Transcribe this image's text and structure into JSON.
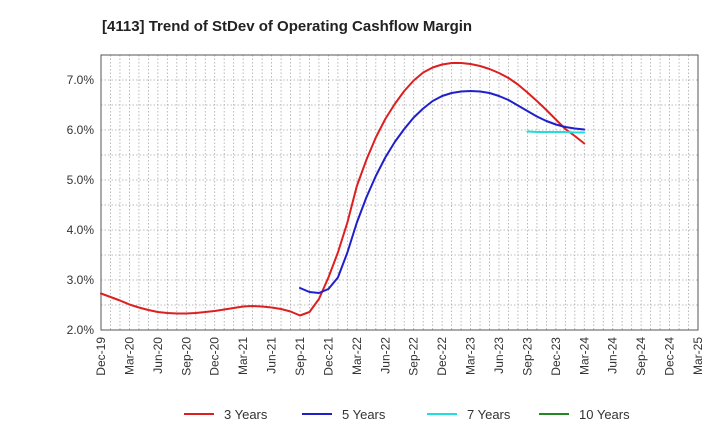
{
  "chart_data": {
    "type": "line",
    "title": "[4113]  Trend of StDev of Operating Cashflow Margin",
    "xlabel": "",
    "ylabel": "",
    "x_ticks": [
      "Dec-19",
      "Mar-20",
      "Jun-20",
      "Sep-20",
      "Dec-20",
      "Mar-21",
      "Jun-21",
      "Sep-21",
      "Dec-21",
      "Mar-22",
      "Jun-22",
      "Sep-22",
      "Dec-22",
      "Mar-23",
      "Jun-23",
      "Sep-23",
      "Dec-23",
      "Mar-24",
      "Jun-24",
      "Sep-24",
      "Dec-24",
      "Mar-25"
    ],
    "y_ticks": [
      "2.0%",
      "3.0%",
      "4.0%",
      "5.0%",
      "6.0%",
      "7.0%"
    ],
    "ylim": [
      2.0,
      7.5
    ],
    "grid": true,
    "legend_position": "bottom",
    "series": [
      {
        "name": "3 Years",
        "color": "#dd1f1f",
        "points": [
          [
            "Dec-19",
            2.73
          ],
          [
            "Jan-20",
            2.66
          ],
          [
            "Feb-20",
            2.59
          ],
          [
            "Mar-20",
            2.51
          ],
          [
            "Apr-20",
            2.45
          ],
          [
            "May-20",
            2.4
          ],
          [
            "Jun-20",
            2.36
          ],
          [
            "Jul-20",
            2.34
          ],
          [
            "Aug-20",
            2.33
          ],
          [
            "Sep-20",
            2.33
          ],
          [
            "Oct-20",
            2.34
          ],
          [
            "Nov-20",
            2.36
          ],
          [
            "Dec-20",
            2.38
          ],
          [
            "Jan-21",
            2.41
          ],
          [
            "Feb-21",
            2.44
          ],
          [
            "Mar-21",
            2.47
          ],
          [
            "Apr-21",
            2.48
          ],
          [
            "May-21",
            2.47
          ],
          [
            "Jun-21",
            2.45
          ],
          [
            "Jul-21",
            2.42
          ],
          [
            "Aug-21",
            2.37
          ],
          [
            "Sep-21",
            2.29
          ],
          [
            "Oct-21",
            2.36
          ],
          [
            "Nov-21",
            2.62
          ],
          [
            "Dec-21",
            3.05
          ],
          [
            "Jan-22",
            3.55
          ],
          [
            "Feb-22",
            4.15
          ],
          [
            "Mar-22",
            4.88
          ],
          [
            "Apr-22",
            5.4
          ],
          [
            "May-22",
            5.85
          ],
          [
            "Jun-22",
            6.22
          ],
          [
            "Jul-22",
            6.52
          ],
          [
            "Aug-22",
            6.78
          ],
          [
            "Sep-22",
            6.99
          ],
          [
            "Oct-22",
            7.15
          ],
          [
            "Nov-22",
            7.25
          ],
          [
            "Dec-22",
            7.31
          ],
          [
            "Jan-23",
            7.34
          ],
          [
            "Feb-23",
            7.34
          ],
          [
            "Mar-23",
            7.32
          ],
          [
            "Apr-23",
            7.28
          ],
          [
            "May-23",
            7.22
          ],
          [
            "Jun-23",
            7.14
          ],
          [
            "Jul-23",
            7.04
          ],
          [
            "Aug-23",
            6.91
          ],
          [
            "Sep-23",
            6.75
          ],
          [
            "Oct-23",
            6.58
          ],
          [
            "Nov-23",
            6.4
          ],
          [
            "Dec-23",
            6.21
          ],
          [
            "Jan-24",
            6.02
          ],
          [
            "Feb-24",
            5.88
          ],
          [
            "Mar-24",
            5.73
          ]
        ]
      },
      {
        "name": "5 Years",
        "color": "#1f1fcc",
        "points": [
          [
            "Sep-21",
            2.84
          ],
          [
            "Oct-21",
            2.76
          ],
          [
            "Nov-21",
            2.74
          ],
          [
            "Dec-21",
            2.82
          ],
          [
            "Jan-22",
            3.05
          ],
          [
            "Feb-22",
            3.55
          ],
          [
            "Mar-22",
            4.15
          ],
          [
            "Apr-22",
            4.65
          ],
          [
            "May-22",
            5.08
          ],
          [
            "Jun-22",
            5.45
          ],
          [
            "Jul-22",
            5.76
          ],
          [
            "Aug-22",
            6.02
          ],
          [
            "Sep-22",
            6.25
          ],
          [
            "Oct-22",
            6.43
          ],
          [
            "Nov-22",
            6.58
          ],
          [
            "Dec-22",
            6.68
          ],
          [
            "Jan-23",
            6.74
          ],
          [
            "Feb-23",
            6.77
          ],
          [
            "Mar-23",
            6.78
          ],
          [
            "Apr-23",
            6.77
          ],
          [
            "May-23",
            6.74
          ],
          [
            "Jun-23",
            6.68
          ],
          [
            "Jul-23",
            6.6
          ],
          [
            "Aug-23",
            6.49
          ],
          [
            "Sep-23",
            6.38
          ],
          [
            "Oct-23",
            6.27
          ],
          [
            "Nov-23",
            6.18
          ],
          [
            "Dec-23",
            6.11
          ],
          [
            "Jan-24",
            6.06
          ],
          [
            "Feb-24",
            6.03
          ],
          [
            "Mar-24",
            6.01
          ]
        ]
      },
      {
        "name": "7 Years",
        "color": "#22dddd",
        "points": [
          [
            "Sep-23",
            5.97
          ],
          [
            "Oct-23",
            5.96
          ],
          [
            "Nov-23",
            5.96
          ],
          [
            "Dec-23",
            5.96
          ],
          [
            "Jan-24",
            5.96
          ],
          [
            "Feb-24",
            5.95
          ],
          [
            "Mar-24",
            5.95
          ]
        ]
      },
      {
        "name": "10 Years",
        "color": "#228822",
        "points": []
      }
    ]
  }
}
